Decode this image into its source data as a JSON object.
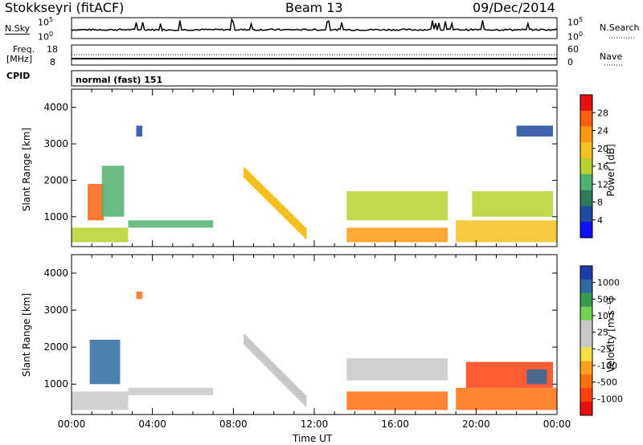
{
  "header": {
    "station": "Stokkseyri (fitACF)",
    "beam": "Beam 13",
    "date": "09/Dec/2014"
  },
  "noise_panel": {
    "left_label": "N.Sky",
    "right_label": "N.Search",
    "left_top": "10^5",
    "left_bottom": "10^0",
    "right_top": "10^5",
    "right_bottom": "10^0"
  },
  "freq_panel": {
    "left_label_1": "Freq.",
    "left_label_2": "[MHz]",
    "left_top": "18",
    "left_bottom": "8",
    "right_top": "60",
    "right_bottom": "0",
    "right_label": "Nave"
  },
  "cpid": {
    "label": "CPID",
    "text": "normal (fast) 151"
  },
  "time_axis": {
    "title": "Time UT",
    "ticks": [
      "00:00",
      "04:00",
      "08:00",
      "12:00",
      "16:00",
      "20:00",
      "00:00"
    ]
  },
  "chart_data": [
    {
      "type": "heatmap",
      "panel": "power",
      "ylabel": "Slant Range [km]",
      "yticks": [
        1000,
        2000,
        3000,
        4000
      ],
      "ylim": [
        180,
        4500
      ],
      "xlim_hours": [
        0,
        24
      ],
      "colorbar_label": "Power [dB]",
      "colorbar_ticks": [
        "28",
        "24",
        "20",
        "16",
        "12",
        "8",
        "4"
      ],
      "colorbar_colors": [
        "#e81010",
        "#ff6010",
        "#ff9a10",
        "#f4c020",
        "#b8d030",
        "#50b070",
        "#2d7d5a",
        "#1e4aa0",
        "#1010ff"
      ],
      "regions": [
        {
          "t0": 0.0,
          "t1": 2.8,
          "r0": 300,
          "r1": 700,
          "level": 4
        },
        {
          "t0": 0.8,
          "t1": 1.6,
          "r0": 900,
          "r1": 1900,
          "level": 1
        },
        {
          "t0": 1.5,
          "t1": 2.6,
          "r0": 1000,
          "r1": 2400,
          "level": 5
        },
        {
          "t0": 3.2,
          "t1": 3.5,
          "r0": 3200,
          "r1": 3500,
          "level": 7
        },
        {
          "t0": 2.8,
          "t1": 7.0,
          "r0": 700,
          "r1": 900,
          "level": 5
        },
        {
          "t0": 13.6,
          "t1": 18.6,
          "r0": 300,
          "r1": 700,
          "level": 2
        },
        {
          "t0": 13.6,
          "t1": 18.6,
          "r0": 900,
          "r1": 1700,
          "level": 4
        },
        {
          "t0": 19.0,
          "t1": 24.0,
          "r0": 300,
          "r1": 900,
          "level": 3
        },
        {
          "t0": 19.8,
          "t1": 23.8,
          "r0": 1000,
          "r1": 1700,
          "level": 4
        },
        {
          "t0": 22.0,
          "t1": 23.8,
          "r0": 3200,
          "r1": 3500,
          "level": 7
        }
      ],
      "band": {
        "t0": 8.5,
        "t1": 11.6,
        "r_start": 2200,
        "r_end": 500,
        "width": 300,
        "level": 3
      }
    },
    {
      "type": "heatmap",
      "panel": "velocity",
      "ylabel": "Slant Range [km]",
      "yticks": [
        1000,
        2000,
        3000,
        4000
      ],
      "ylim": [
        180,
        4500
      ],
      "xlim_hours": [
        0,
        24
      ],
      "colorbar_label": "Velocity [m s⁻¹]",
      "colorbar_ticks": [
        "1000",
        "500",
        "100",
        "25",
        "-25",
        "-100",
        "-500",
        "-1000"
      ],
      "colorbar_colors": [
        "#1e3ca8",
        "#2e6aa0",
        "#3a9a50",
        "#70d050",
        "#c8c8c8",
        "#c8c8c8",
        "#f4e040",
        "#ffa020",
        "#ff7010",
        "#ff4010",
        "#e81010"
      ],
      "regions": [
        {
          "t0": 0.0,
          "t1": 2.8,
          "r0": 300,
          "r1": 800,
          "level": 4
        },
        {
          "t0": 0.9,
          "t1": 2.4,
          "r0": 1000,
          "r1": 2200,
          "level": 1
        },
        {
          "t0": 3.2,
          "t1": 3.5,
          "r0": 3300,
          "r1": 3500,
          "level": 8
        },
        {
          "t0": 2.8,
          "t1": 7.0,
          "r0": 700,
          "r1": 900,
          "level": 4
        },
        {
          "t0": 13.6,
          "t1": 18.6,
          "r0": 300,
          "r1": 800,
          "level": 8
        },
        {
          "t0": 13.6,
          "t1": 18.6,
          "r0": 1100,
          "r1": 1700,
          "level": 4
        },
        {
          "t0": 19.0,
          "t1": 24.0,
          "r0": 300,
          "r1": 900,
          "level": 8
        },
        {
          "t0": 19.5,
          "t1": 23.8,
          "r0": 900,
          "r1": 1600,
          "level": 9
        },
        {
          "t0": 22.5,
          "t1": 23.5,
          "r0": 1000,
          "r1": 1400,
          "level": 1
        }
      ],
      "band": {
        "t0": 8.5,
        "t1": 11.6,
        "r_start": 2200,
        "r_end": 500,
        "width": 300,
        "level": 4
      }
    }
  ]
}
